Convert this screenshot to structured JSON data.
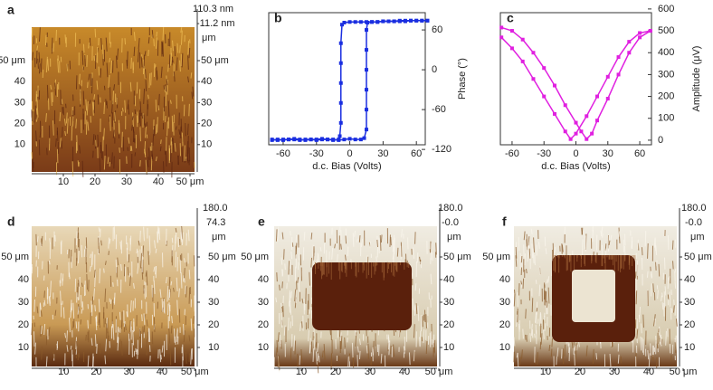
{
  "chart_data": [
    {
      "type": "surface",
      "label": "a",
      "zlabels": [
        "110.3 nm",
        "-11.2 nm"
      ],
      "zunit": "μm",
      "xlim": [
        0,
        52
      ],
      "ylim": [
        0,
        66
      ],
      "xticks": [
        10,
        20,
        30,
        40,
        {
          "value": 50,
          "label": "50 μm"
        }
      ],
      "yticks": [
        {
          "value": 50,
          "label": "50 μm"
        },
        40,
        30,
        20,
        10
      ],
      "y2ticks": [
        {
          "value": 50,
          "label": "50 μm"
        },
        40,
        30,
        20,
        10
      ]
    },
    {
      "type": "line",
      "label": "b",
      "xlabel": "d.c. Bias (Volts)",
      "ylabel": "Phase (°)",
      "xlim": [
        -73,
        68
      ],
      "ylim": [
        -113,
        86
      ],
      "xticks": [
        -60,
        -30,
        0,
        30,
        60
      ],
      "yticks": [
        60,
        0,
        -60,
        -120
      ],
      "series": [
        {
          "color": "#1a2ee0",
          "x": [
            -70,
            -65,
            -60,
            -55,
            -50,
            -45,
            -40,
            -35,
            -30,
            -25,
            -20,
            -15,
            -10,
            -5,
            0,
            5,
            10,
            13,
            15,
            15,
            15,
            15,
            15,
            15,
            16,
            20,
            25,
            30,
            35,
            40,
            45,
            50,
            55,
            60,
            65,
            70
          ],
          "values": [
            -105,
            -106,
            -105,
            -105,
            -104,
            -105,
            -106,
            -105,
            -105,
            -104,
            -105,
            -105,
            -106,
            -105,
            -104,
            -105,
            -105,
            -103,
            -90,
            -60,
            -30,
            0,
            30,
            60,
            71,
            72,
            72,
            73,
            73,
            73,
            74,
            74,
            74,
            74,
            74,
            74
          ]
        },
        {
          "color": "#1a2ee0",
          "x": [
            70,
            65,
            60,
            55,
            50,
            45,
            40,
            35,
            30,
            25,
            20,
            15,
            10,
            5,
            0,
            -5,
            -7,
            -8,
            -8,
            -8,
            -8,
            -8,
            -9,
            -10,
            -15,
            -20,
            -25,
            -30,
            -35,
            -40,
            -45,
            -50,
            -55,
            -60,
            -65,
            -70
          ],
          "values": [
            74,
            74,
            74,
            74,
            73,
            73,
            73,
            73,
            73,
            72,
            72,
            72,
            72,
            72,
            72,
            71,
            68,
            40,
            10,
            -20,
            -50,
            -80,
            -100,
            -105,
            -106,
            -105,
            -105,
            -106,
            -105,
            -105,
            -106,
            -105,
            -105,
            -106,
            -105,
            -106
          ]
        }
      ]
    },
    {
      "type": "line",
      "label": "c",
      "xlabel": "d.c. Bias (Volts)",
      "ylabel": "Amplitude (μV)",
      "xlim": [
        -71,
        71
      ],
      "ylim": [
        -21,
        583
      ],
      "xticks": [
        -60,
        -30,
        0,
        30,
        60
      ],
      "yticks": [
        600,
        500,
        400,
        300,
        200,
        100,
        0
      ],
      "series": [
        {
          "color": "#e020e0",
          "x": [
            -70,
            -60,
            -50,
            -40,
            -30,
            -20,
            -10,
            0,
            5,
            10,
            15,
            20,
            30,
            40,
            50,
            60,
            70
          ],
          "values": [
            515,
            500,
            460,
            400,
            330,
            250,
            160,
            80,
            40,
            5,
            30,
            90,
            190,
            300,
            400,
            470,
            500
          ]
        },
        {
          "color": "#e020e0",
          "x": [
            -70,
            -60,
            -50,
            -40,
            -30,
            -20,
            -10,
            -5,
            0,
            10,
            20,
            30,
            40,
            50,
            60,
            70
          ],
          "values": [
            470,
            420,
            360,
            280,
            200,
            120,
            40,
            5,
            30,
            110,
            200,
            290,
            380,
            450,
            490,
            500
          ]
        }
      ]
    },
    {
      "type": "surface",
      "label": "d",
      "zlabels": [
        "180.0",
        "74.3"
      ],
      "zunit": "μm",
      "xlim": [
        0,
        52
      ],
      "ylim": [
        0,
        66
      ],
      "xticks": [
        10,
        20,
        30,
        40,
        {
          "value": 50,
          "label": "50 μm"
        }
      ],
      "yticks": [
        {
          "value": 50,
          "label": "50 μm"
        },
        40,
        30,
        20,
        10
      ],
      "y2ticks": [
        {
          "value": 50,
          "label": "50 μm"
        },
        40,
        30,
        20,
        10
      ]
    },
    {
      "type": "surface",
      "label": "e",
      "zlabels": [
        "180.0",
        "-0.0"
      ],
      "zunit": "μm",
      "xlim": [
        0,
        52
      ],
      "ylim": [
        0,
        66
      ],
      "xticks": [
        10,
        20,
        30,
        40,
        {
          "value": 50,
          "label": "50 μm"
        }
      ],
      "yticks": [
        {
          "value": 50,
          "label": "50 μm"
        },
        40,
        30,
        20,
        10
      ],
      "y2ticks": [
        {
          "value": 50,
          "label": "50 μm"
        },
        40,
        30,
        20,
        10
      ]
    },
    {
      "type": "surface",
      "label": "f",
      "zlabels": [
        "180.0",
        "-0.0"
      ],
      "zunit": "μm",
      "xlim": [
        0,
        52
      ],
      "ylim": [
        0,
        66
      ],
      "xticks": [
        10,
        20,
        30,
        40,
        {
          "value": 50,
          "label": "50 μm"
        }
      ],
      "yticks": [
        {
          "value": 50,
          "label": "50 μm"
        },
        40,
        30,
        20,
        10
      ],
      "y2ticks": [
        {
          "value": 50,
          "label": "50 μm"
        },
        40,
        30,
        20,
        10
      ]
    }
  ]
}
